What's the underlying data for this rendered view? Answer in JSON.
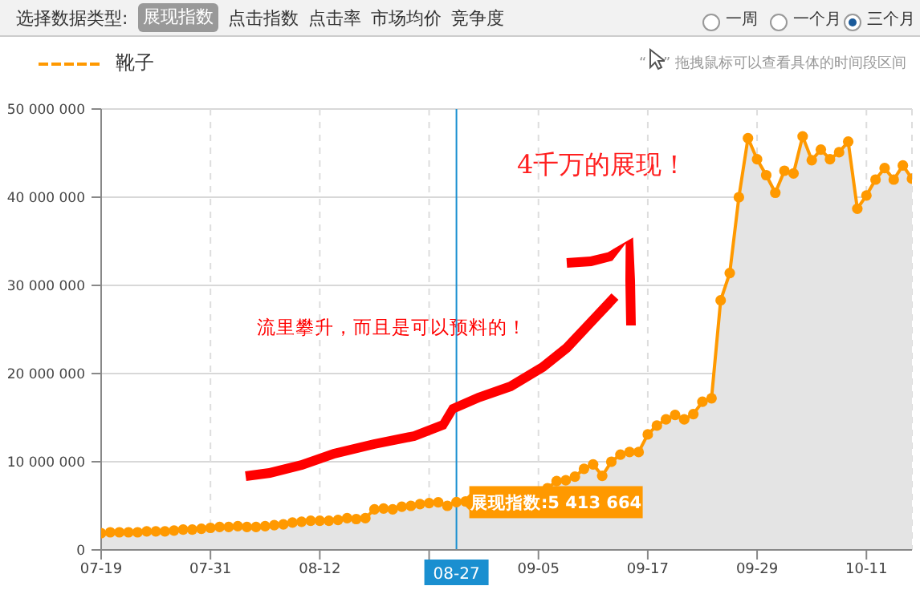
{
  "chart_data": {
    "type": "area",
    "x": [
      "--07-19",
      "--07-20",
      "--07-21",
      "--07-22",
      "--07-23",
      "--07-24",
      "--07-25",
      "--07-26",
      "--07-27",
      "--07-28",
      "--07-29",
      "--07-30",
      "--07-31",
      "--08-01",
      "--08-02",
      "--08-03",
      "--08-04",
      "--08-05",
      "--08-06",
      "--08-07",
      "--08-08",
      "--08-09",
      "--08-10",
      "--08-11",
      "--08-12",
      "--08-13",
      "--08-14",
      "--08-15",
      "--08-16",
      "--08-17",
      "--08-18",
      "--08-19",
      "--08-20",
      "--08-21",
      "--08-22",
      "--08-23",
      "--08-24",
      "--08-25",
      "--08-26",
      "--08-27",
      "--08-28",
      "--08-29",
      "--08-30",
      "--08-31",
      "--09-01",
      "--09-02",
      "--09-03",
      "--09-04",
      "--09-05",
      "--09-06",
      "--09-07",
      "--09-08",
      "--09-09",
      "--09-10",
      "--09-11",
      "--09-12",
      "--09-13",
      "--09-14",
      "--09-15",
      "--09-16",
      "--09-17",
      "--09-18",
      "--09-19",
      "--09-20",
      "--09-21",
      "--09-22",
      "--09-23",
      "--09-24",
      "--09-25",
      "--09-26",
      "--09-27",
      "--09-28",
      "--09-29",
      "--09-30",
      "--10-01",
      "--10-02",
      "--10-03",
      "--10-04",
      "--10-05",
      "--10-06",
      "--10-07",
      "--10-08",
      "--10-09",
      "--10-10",
      "--10-11",
      "--10-12",
      "--10-13",
      "--10-14",
      "--10-15",
      "--10-16"
    ],
    "series": [
      {
        "name": "靴子",
        "color": "#ff9900",
        "values": [
          1900000,
          2000000,
          2000000,
          2000000,
          2000000,
          2100000,
          2100000,
          2100000,
          2200000,
          2300000,
          2300000,
          2400000,
          2500000,
          2600000,
          2600000,
          2700000,
          2600000,
          2600000,
          2700000,
          2800000,
          2900000,
          3100000,
          3200000,
          3300000,
          3300000,
          3300000,
          3400000,
          3600000,
          3500000,
          3600000,
          4600000,
          4700000,
          4600000,
          4900000,
          5000000,
          5200000,
          5300000,
          5400000,
          5000000,
          5413664,
          5500000,
          null,
          null,
          null,
          null,
          null,
          null,
          null,
          null,
          7000000,
          7800000,
          7900000,
          8300000,
          9200000,
          9700000,
          8400000,
          10000000,
          10800000,
          11100000,
          11100000,
          13100000,
          14100000,
          14800000,
          15300000,
          14800000,
          15400000,
          16800000,
          17200000,
          28300000,
          31400000,
          40000000,
          46700000,
          44300000,
          42500000,
          40500000,
          43000000,
          42700000,
          46900000,
          44200000,
          45400000,
          44300000,
          45100000,
          46300000,
          38700000,
          40200000,
          42000000,
          43300000,
          42000000,
          43600000,
          42100000
        ]
      }
    ],
    "xlim": [
      "--07-19",
      "--10-16"
    ],
    "xticks": [
      {
        "value": "--07-19",
        "label": "07-19"
      },
      {
        "value": "--07-31",
        "label": "07-31"
      },
      {
        "value": "--08-12",
        "label": "08-12"
      },
      {
        "value": "--08-24",
        "label": null
      },
      {
        "value": "--09-05",
        "label": "09-05"
      },
      {
        "value": "--09-17",
        "label": "09-17"
      },
      {
        "value": "--09-29",
        "label": "09-29"
      },
      {
        "value": "--10-11",
        "label": "10-11"
      }
    ],
    "ylim": [
      0,
      50000000
    ],
    "yticks": [
      0,
      {
        "value": 10000000,
        "label": "10 000 000"
      },
      {
        "value": 20000000,
        "label": "20 000 000"
      },
      {
        "value": 30000000,
        "label": "30 000 000"
      },
      {
        "value": 40000000,
        "label": "40 000 000"
      },
      {
        "value": 50000000,
        "label": "50 000 000"
      }
    ],
    "ref_lines": [
      {
        "axis": "x",
        "value": "--08-27",
        "label": "08-27",
        "color": "#1a8fd0"
      }
    ],
    "grid": true,
    "legend": "top left",
    "marker": "circle",
    "line_style": "solid",
    "annotations": [
      "选择数据类型:",
      "展现指数",
      "点击指数",
      "点击率",
      "市场均价",
      "竞争度",
      "一周",
      "一个月",
      "三个月",
      "“",
      "” 拖拽鼠标可以查看具体的时间段区间",
      "4千万的展现！",
      "流里攀升，而且是可以预料的！",
      {
        "text": "展现指数:5 413 664",
        "x": "--08-27",
        "y": 5413664
      }
    ]
  }
}
